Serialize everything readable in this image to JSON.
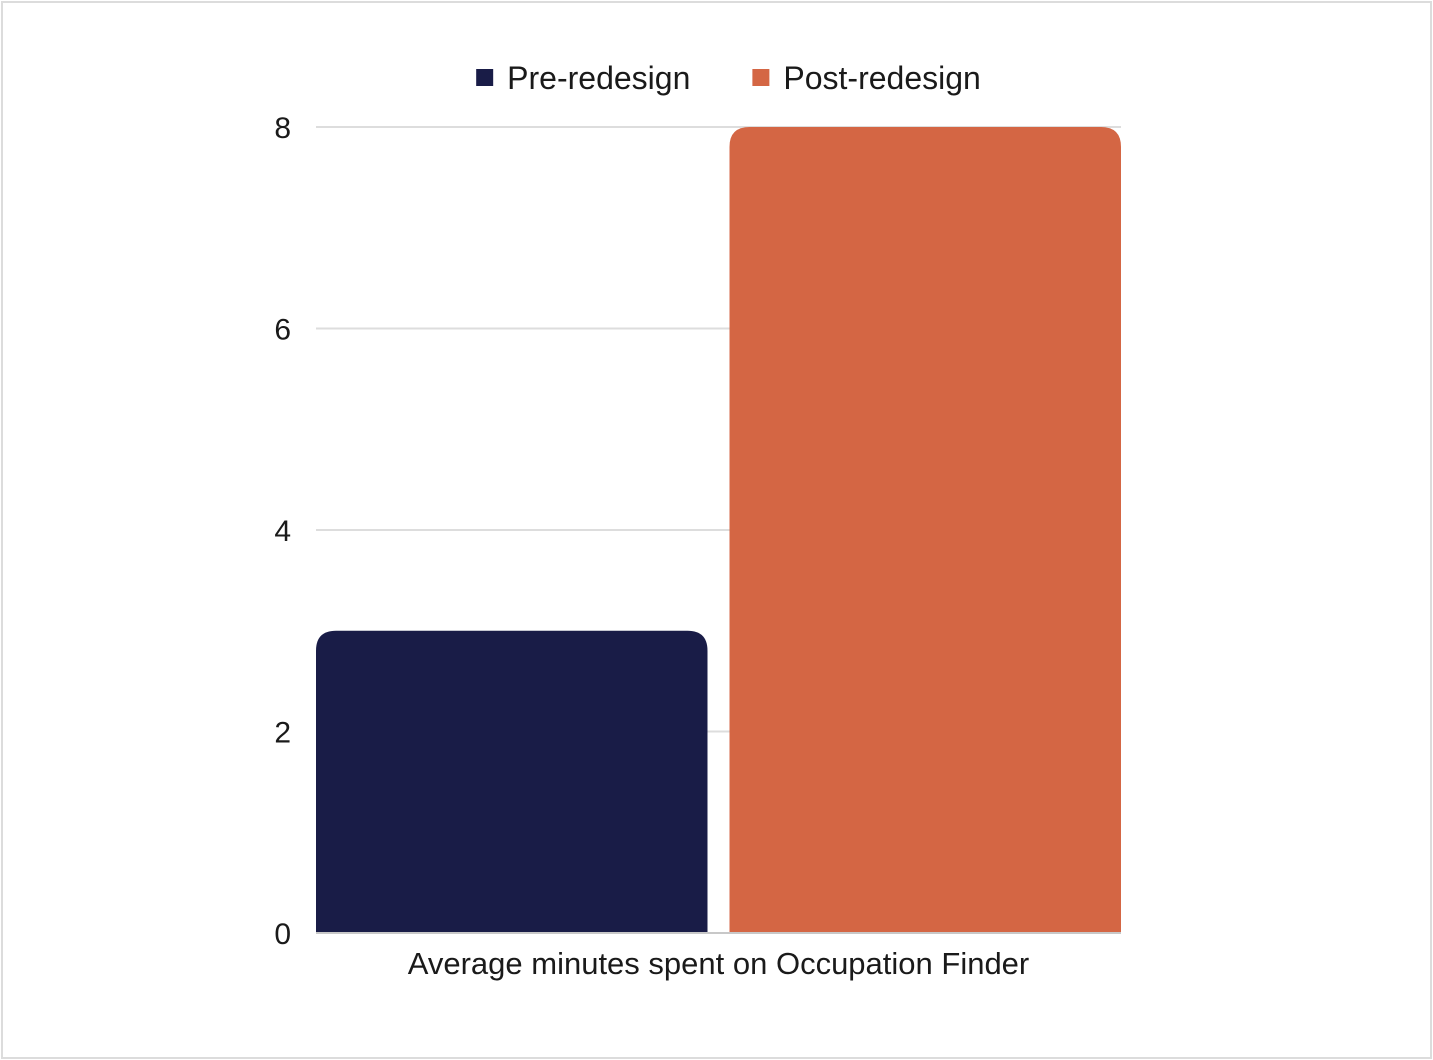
{
  "chart_data": {
    "type": "bar",
    "categories": [
      "Average minutes spent on Occupation Finder"
    ],
    "series": [
      {
        "name": "Pre-redesign",
        "values": [
          3
        ],
        "color": "#191c47"
      },
      {
        "name": "Post-redesign",
        "values": [
          8
        ],
        "color": "#d46644"
      }
    ],
    "title": "",
    "xlabel": "",
    "ylabel": "",
    "ylim": [
      0,
      8
    ],
    "yticks": [
      0,
      2,
      4,
      6,
      8
    ],
    "grid": true,
    "legend_position": "top-center",
    "colors": {
      "grid": "#dddddd",
      "axis": "#c8c8c8",
      "text": "#1a1a1a"
    }
  }
}
